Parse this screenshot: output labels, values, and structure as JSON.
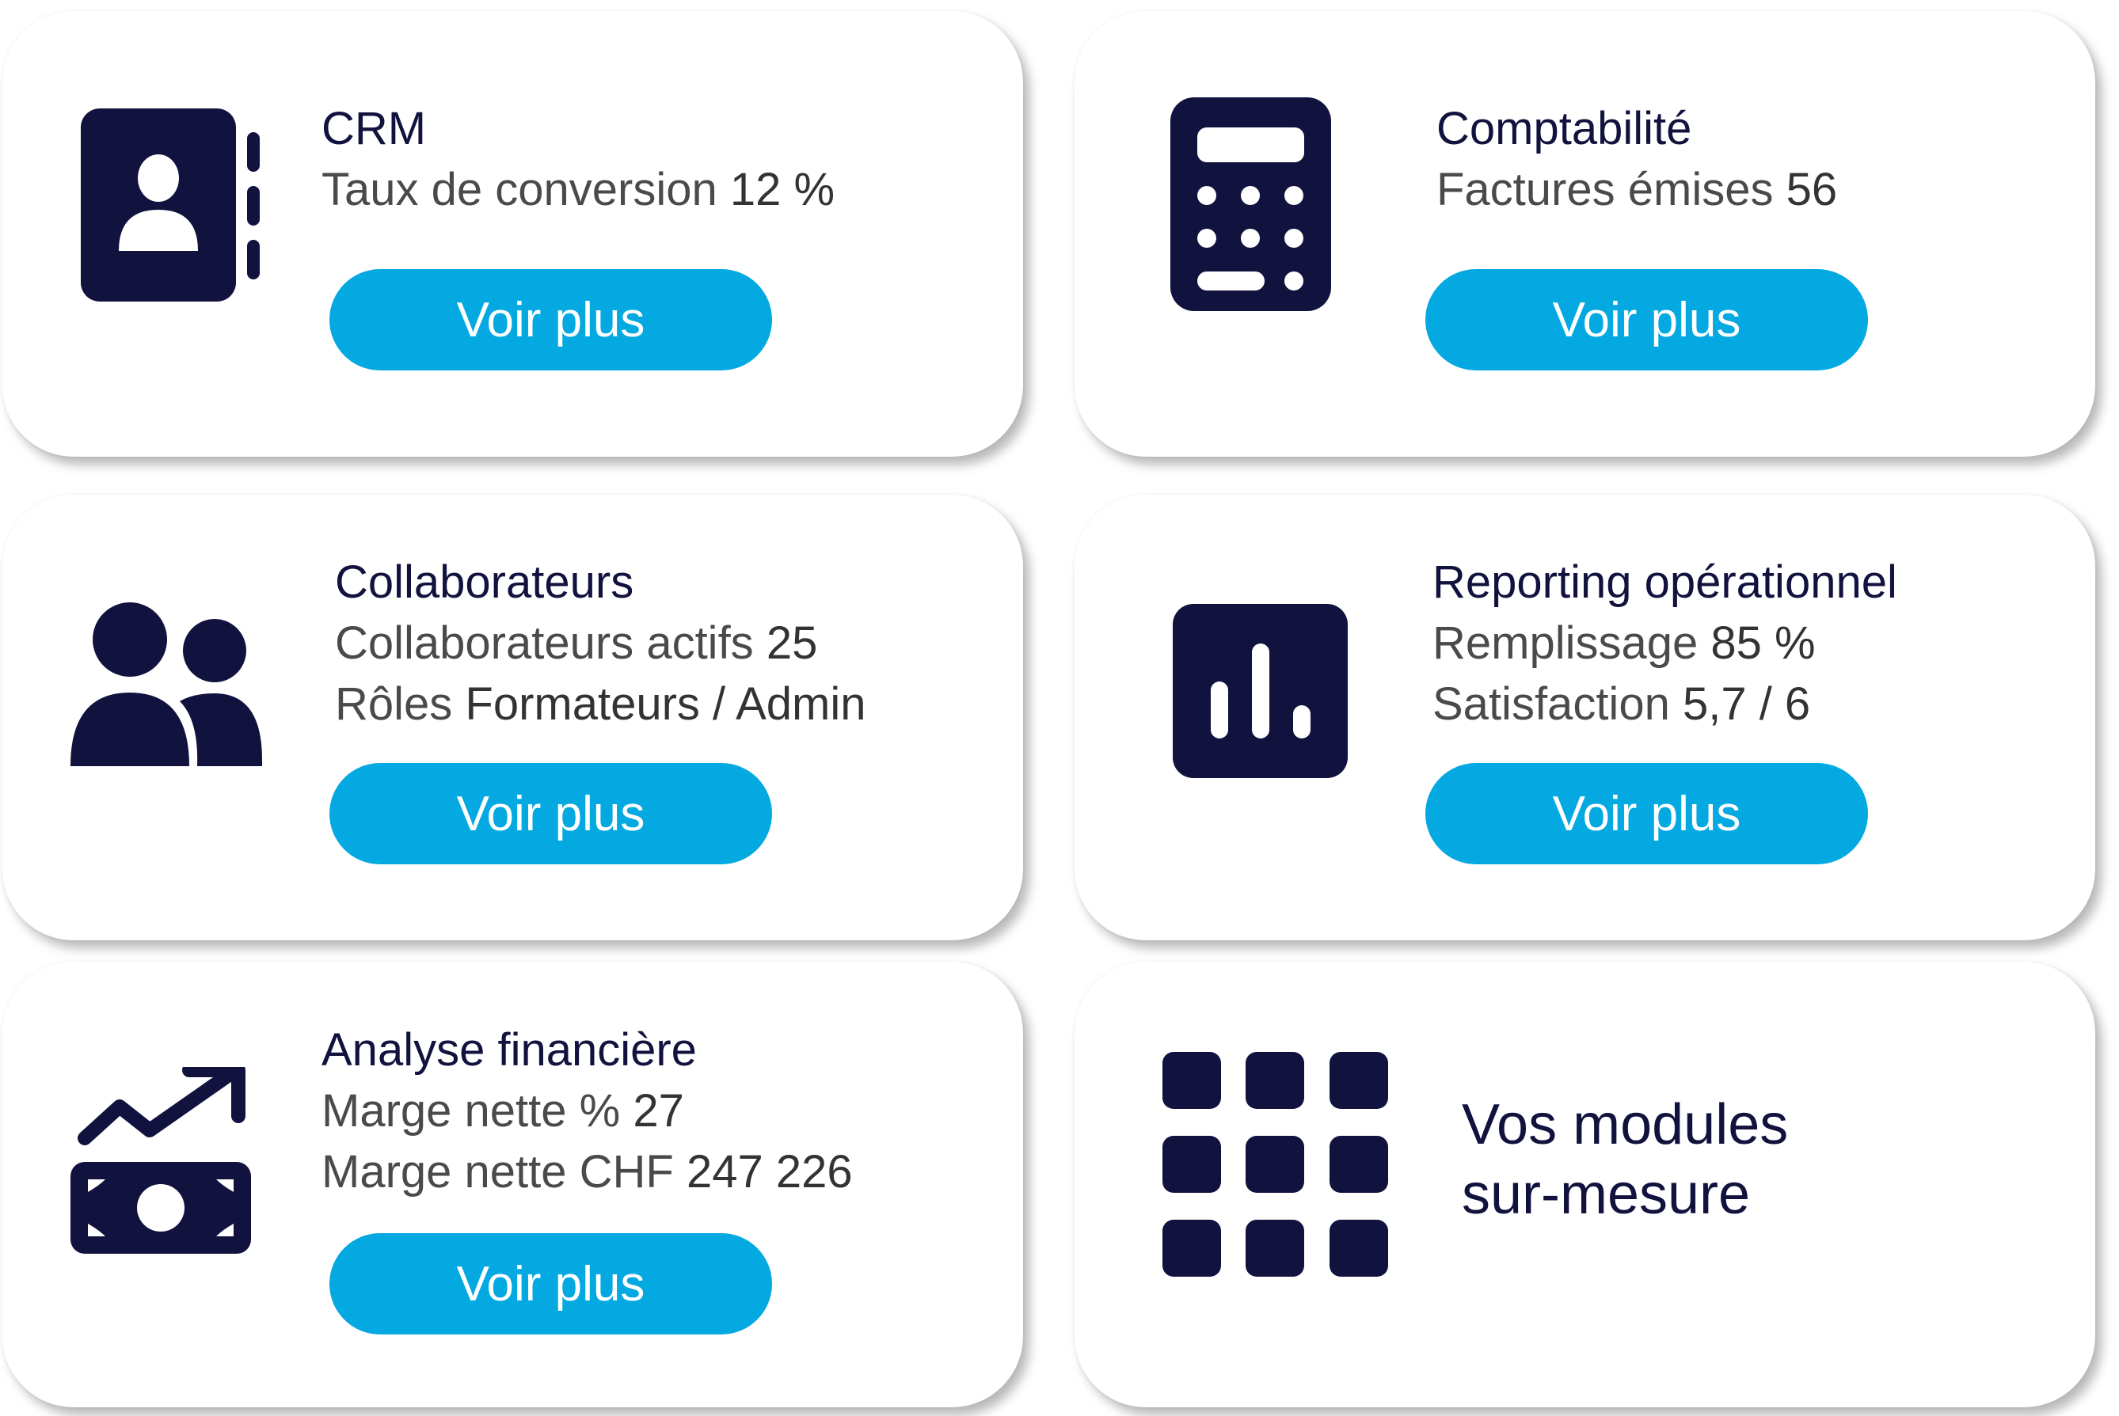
{
  "colors": {
    "navy": "#11123e",
    "accent": "#03a9e0",
    "text": "#4a4a4a"
  },
  "cards": [
    {
      "icon": "contact-book-icon",
      "title": "CRM",
      "lines": [
        {
          "label": "Taux de conversion",
          "value": "12 %"
        }
      ],
      "button": "Voir plus"
    },
    {
      "icon": "calculator-icon",
      "title": "Comptabilité",
      "lines": [
        {
          "label": "Factures émises",
          "value": "56"
        }
      ],
      "button": "Voir plus"
    },
    {
      "icon": "users-icon",
      "title": "Collaborateurs",
      "lines": [
        {
          "label": "Collaborateurs actifs",
          "value": "25"
        },
        {
          "label": "Rôles",
          "value": "Formateurs / Admin"
        }
      ],
      "button": "Voir plus"
    },
    {
      "icon": "bar-chart-icon",
      "title": "Reporting opérationnel",
      "lines": [
        {
          "label": "Remplissage",
          "value": "85 %"
        },
        {
          "label": "Satisfaction",
          "value": "5,7 / 6"
        }
      ],
      "button": "Voir plus"
    },
    {
      "icon": "money-trend-icon",
      "title": "Analyse financière",
      "lines": [
        {
          "label": "Marge nette %",
          "value": "27"
        },
        {
          "label": "Marge nette CHF",
          "value": "247 226"
        }
      ],
      "button": "Voir plus"
    },
    {
      "icon": "grid-icon",
      "title_lines": [
        "Vos modules",
        "sur-mesure"
      ]
    }
  ]
}
